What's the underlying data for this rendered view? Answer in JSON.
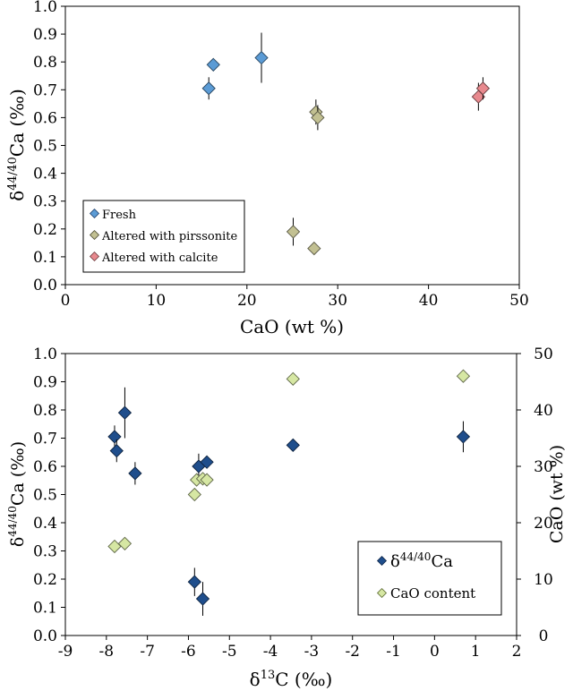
{
  "chart_data": [
    {
      "type": "scatter",
      "xlabel": "CaO (wt %)",
      "ylabel_main": "δ",
      "ylabel_sup": "44/40",
      "ylabel_tail": "Ca (‰)",
      "xlim": [
        0,
        50
      ],
      "ylim": [
        0,
        1
      ],
      "xticks": [
        "0",
        "10",
        "20",
        "30",
        "40",
        "50"
      ],
      "yticks": [
        "0.0",
        "0.1",
        "0.2",
        "0.3",
        "0.4",
        "0.5",
        "0.6",
        "0.7",
        "0.8",
        "0.9",
        "1.0"
      ],
      "grid": false,
      "legend_position": "bottom-left",
      "series": [
        {
          "name": "Fresh",
          "color": "#5b9bd5",
          "points": [
            {
              "x": 15.8,
              "y": 0.705,
              "err": 0.04
            },
            {
              "x": 16.3,
              "y": 0.79,
              "err": 0.0
            },
            {
              "x": 21.6,
              "y": 0.815,
              "err": 0.09
            }
          ]
        },
        {
          "name": "Altered with pirssonite",
          "color": "#c2c092",
          "points": [
            {
              "x": 27.6,
              "y": 0.62,
              "err": 0.045
            },
            {
              "x": 27.8,
              "y": 0.6,
              "err": 0.045
            },
            {
              "x": 25.1,
              "y": 0.19,
              "err": 0.05
            },
            {
              "x": 27.4,
              "y": 0.13,
              "err": 0.0
            }
          ]
        },
        {
          "name": "Altered with calcite",
          "color": "#e8898e",
          "points": [
            {
              "x": 45.5,
              "y": 0.675,
              "err": 0.05
            },
            {
              "x": 46.0,
              "y": 0.705,
              "err": 0.04
            }
          ]
        }
      ]
    },
    {
      "type": "scatter",
      "xlabel_main": "δ",
      "xlabel_sup": "13",
      "xlabel_tail": "C (‰)",
      "ylabel_main": "δ",
      "ylabel_sup": "44/40",
      "ylabel_tail": "Ca (‰)",
      "y2label": "CaO (wt %)",
      "xlim": [
        -9,
        2
      ],
      "ylim": [
        0,
        1
      ],
      "y2lim": [
        0,
        50
      ],
      "xticks": [
        "-9",
        "-8",
        "-7",
        "-6",
        "-5",
        "-4",
        "-3",
        "-2",
        "-1",
        "0",
        "1",
        "2"
      ],
      "yticks": [
        "0.0",
        "0.1",
        "0.2",
        "0.3",
        "0.4",
        "0.5",
        "0.6",
        "0.7",
        "0.8",
        "0.9",
        "1.0"
      ],
      "y2ticks": [
        "0",
        "10",
        "20",
        "30",
        "40",
        "50"
      ],
      "grid": false,
      "legend_position": "bottom-right",
      "series": [
        {
          "name_main": "δ",
          "name_sup": "44/40",
          "name_tail": "Ca",
          "color": "#1f4e8c",
          "axis": "left",
          "points": [
            {
              "x": -7.8,
              "y": 0.705,
              "err": 0.04
            },
            {
              "x": -7.75,
              "y": 0.655,
              "err": 0.04
            },
            {
              "x": -7.55,
              "y": 0.79,
              "err": 0.09
            },
            {
              "x": -7.3,
              "y": 0.575,
              "err": 0.04
            },
            {
              "x": -5.75,
              "y": 0.6,
              "err": 0.045
            },
            {
              "x": -5.55,
              "y": 0.615,
              "err": 0.0
            },
            {
              "x": -5.85,
              "y": 0.19,
              "err": 0.05
            },
            {
              "x": -5.65,
              "y": 0.13,
              "err": 0.06
            },
            {
              "x": -3.45,
              "y": 0.675,
              "err": 0.0
            },
            {
              "x": 0.7,
              "y": 0.705,
              "err": 0.055
            }
          ]
        },
        {
          "name": "CaO content",
          "color": "#d6e7a3",
          "axis": "right",
          "points": [
            {
              "x": -7.8,
              "y": 15.8
            },
            {
              "x": -7.55,
              "y": 16.3
            },
            {
              "x": -5.85,
              "y": 25.0
            },
            {
              "x": -5.8,
              "y": 27.6
            },
            {
              "x": -5.65,
              "y": 27.8
            },
            {
              "x": -5.55,
              "y": 27.6
            },
            {
              "x": -3.45,
              "y": 45.5
            },
            {
              "x": 0.7,
              "y": 46.0
            }
          ]
        }
      ]
    }
  ]
}
